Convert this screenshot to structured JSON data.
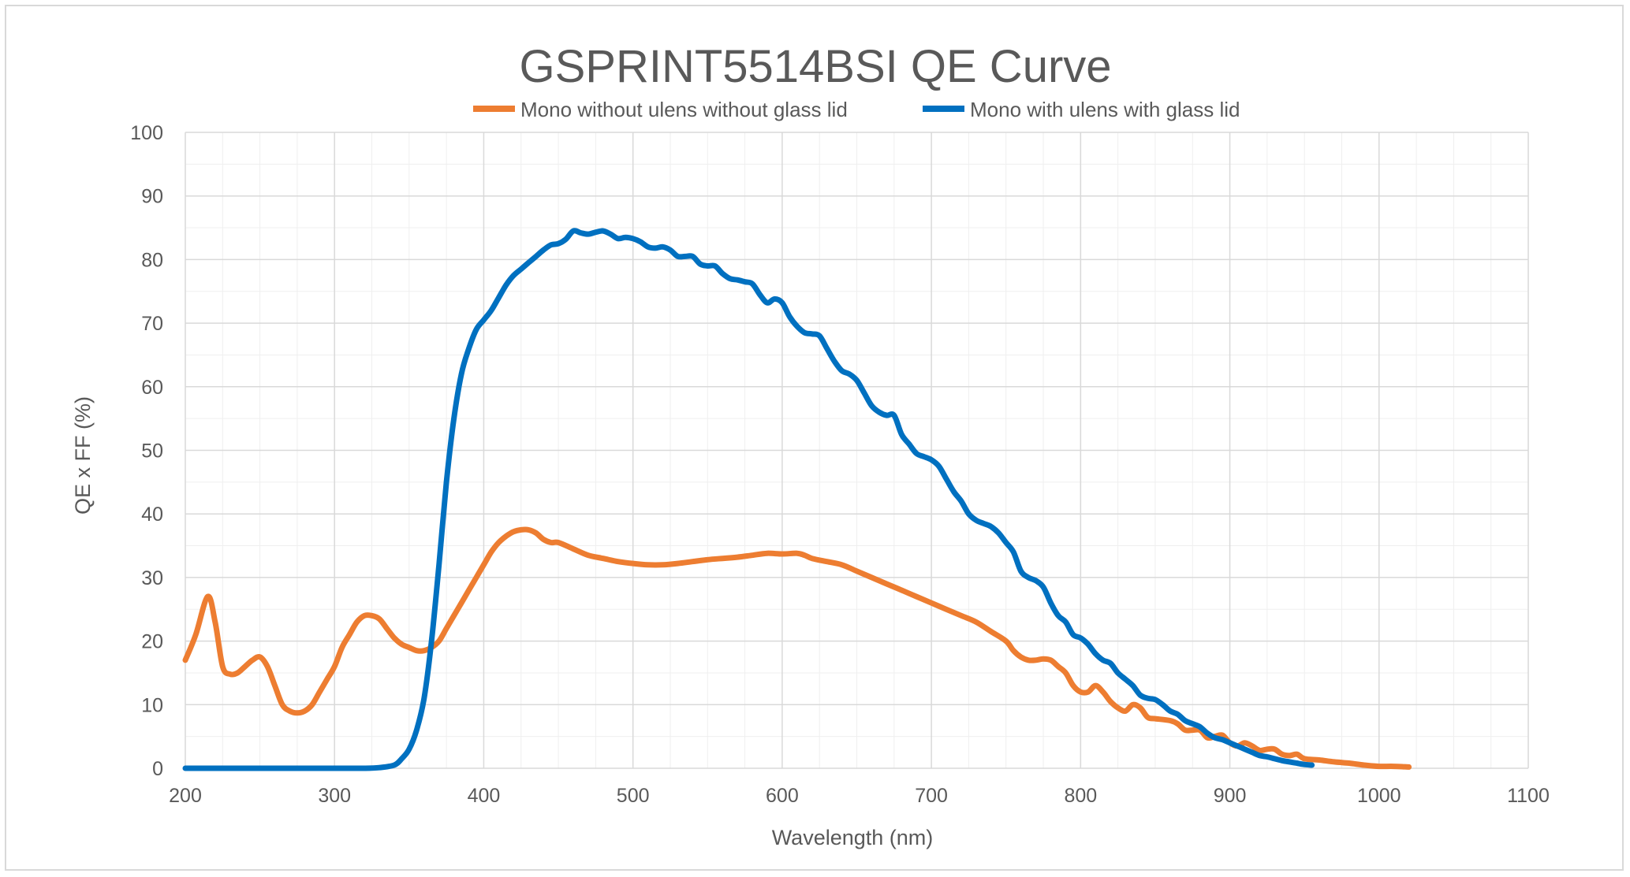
{
  "chart_data": {
    "type": "line",
    "title": "GSPRINT5514BSI QE Curve",
    "xlabel": "Wavelength (nm)",
    "ylabel": "QE x FF (%)",
    "xlim": [
      200,
      1100
    ],
    "ylim": [
      0,
      100
    ],
    "x_ticks": [
      "200",
      "300",
      "400",
      "500",
      "600",
      "700",
      "800",
      "900",
      "1000",
      "1100"
    ],
    "y_ticks": [
      "0",
      "10",
      "20",
      "30",
      "40",
      "50",
      "60",
      "70",
      "80",
      "90",
      "100"
    ],
    "grid": true,
    "legend_position": "top",
    "series": [
      {
        "name": "Mono without ulens without glass lid",
        "color": "#ED7D31",
        "points": [
          [
            200,
            17
          ],
          [
            207,
            21
          ],
          [
            215,
            27
          ],
          [
            220,
            23
          ],
          [
            225,
            16
          ],
          [
            230,
            14.8
          ],
          [
            235,
            15
          ],
          [
            240,
            16
          ],
          [
            245,
            17
          ],
          [
            250,
            17.5
          ],
          [
            255,
            16
          ],
          [
            260,
            13
          ],
          [
            265,
            10
          ],
          [
            270,
            9
          ],
          [
            275,
            8.7
          ],
          [
            280,
            9
          ],
          [
            285,
            10
          ],
          [
            290,
            12
          ],
          [
            295,
            14
          ],
          [
            300,
            16
          ],
          [
            305,
            19
          ],
          [
            310,
            21
          ],
          [
            315,
            23
          ],
          [
            320,
            24
          ],
          [
            325,
            24
          ],
          [
            330,
            23.5
          ],
          [
            335,
            22
          ],
          [
            340,
            20.5
          ],
          [
            345,
            19.5
          ],
          [
            350,
            19
          ],
          [
            355,
            18.5
          ],
          [
            360,
            18.5
          ],
          [
            365,
            19
          ],
          [
            370,
            20
          ],
          [
            375,
            22
          ],
          [
            380,
            24
          ],
          [
            385,
            26
          ],
          [
            390,
            28
          ],
          [
            395,
            30
          ],
          [
            400,
            32
          ],
          [
            405,
            34
          ],
          [
            410,
            35.5
          ],
          [
            415,
            36.5
          ],
          [
            420,
            37.2
          ],
          [
            425,
            37.5
          ],
          [
            430,
            37.5
          ],
          [
            435,
            37
          ],
          [
            440,
            36
          ],
          [
            445,
            35.5
          ],
          [
            450,
            35.5
          ],
          [
            460,
            34.5
          ],
          [
            470,
            33.5
          ],
          [
            480,
            33
          ],
          [
            490,
            32.5
          ],
          [
            500,
            32.2
          ],
          [
            510,
            32
          ],
          [
            520,
            32
          ],
          [
            530,
            32.2
          ],
          [
            540,
            32.5
          ],
          [
            550,
            32.8
          ],
          [
            560,
            33
          ],
          [
            570,
            33.2
          ],
          [
            580,
            33.5
          ],
          [
            590,
            33.8
          ],
          [
            600,
            33.7
          ],
          [
            610,
            33.8
          ],
          [
            615,
            33.5
          ],
          [
            620,
            33
          ],
          [
            630,
            32.5
          ],
          [
            640,
            32
          ],
          [
            650,
            31
          ],
          [
            660,
            30
          ],
          [
            670,
            29
          ],
          [
            680,
            28
          ],
          [
            690,
            27
          ],
          [
            700,
            26
          ],
          [
            710,
            25
          ],
          [
            720,
            24
          ],
          [
            730,
            23
          ],
          [
            740,
            21.5
          ],
          [
            750,
            20
          ],
          [
            755,
            18.5
          ],
          [
            760,
            17.5
          ],
          [
            765,
            17
          ],
          [
            770,
            17
          ],
          [
            775,
            17.2
          ],
          [
            780,
            17
          ],
          [
            785,
            16
          ],
          [
            790,
            15
          ],
          [
            795,
            13
          ],
          [
            800,
            12
          ],
          [
            805,
            12
          ],
          [
            810,
            13
          ],
          [
            815,
            12
          ],
          [
            820,
            10.5
          ],
          [
            825,
            9.5
          ],
          [
            830,
            9
          ],
          [
            835,
            10
          ],
          [
            840,
            9.5
          ],
          [
            845,
            8
          ],
          [
            850,
            7.8
          ],
          [
            860,
            7.5
          ],
          [
            865,
            7
          ],
          [
            870,
            6
          ],
          [
            875,
            6
          ],
          [
            880,
            6
          ],
          [
            885,
            4.8
          ],
          [
            890,
            5
          ],
          [
            895,
            5.2
          ],
          [
            900,
            4
          ],
          [
            905,
            3.5
          ],
          [
            910,
            4
          ],
          [
            915,
            3.5
          ],
          [
            920,
            2.8
          ],
          [
            925,
            3
          ],
          [
            930,
            3
          ],
          [
            935,
            2.2
          ],
          [
            940,
            2
          ],
          [
            945,
            2.2
          ],
          [
            950,
            1.5
          ],
          [
            960,
            1.3
          ],
          [
            970,
            1
          ],
          [
            980,
            0.8
          ],
          [
            990,
            0.5
          ],
          [
            1000,
            0.3
          ],
          [
            1010,
            0.3
          ],
          [
            1020,
            0.2
          ]
        ]
      },
      {
        "name": "Mono with ulens with glass lid",
        "color": "#0070C0",
        "points": [
          [
            200,
            0
          ],
          [
            300,
            0
          ],
          [
            320,
            0
          ],
          [
            330,
            0.1
          ],
          [
            340,
            0.5
          ],
          [
            345,
            1.5
          ],
          [
            350,
            3
          ],
          [
            355,
            6
          ],
          [
            360,
            11
          ],
          [
            365,
            20
          ],
          [
            370,
            32
          ],
          [
            375,
            45
          ],
          [
            380,
            55
          ],
          [
            385,
            62
          ],
          [
            390,
            66
          ],
          [
            395,
            69
          ],
          [
            400,
            70.5
          ],
          [
            405,
            72
          ],
          [
            410,
            74
          ],
          [
            415,
            76
          ],
          [
            420,
            77.5
          ],
          [
            425,
            78.5
          ],
          [
            430,
            79.5
          ],
          [
            435,
            80.5
          ],
          [
            440,
            81.5
          ],
          [
            445,
            82.3
          ],
          [
            450,
            82.5
          ],
          [
            455,
            83.2
          ],
          [
            460,
            84.5
          ],
          [
            465,
            84.2
          ],
          [
            470,
            84
          ],
          [
            475,
            84.3
          ],
          [
            480,
            84.5
          ],
          [
            485,
            84
          ],
          [
            490,
            83.3
          ],
          [
            495,
            83.5
          ],
          [
            500,
            83.3
          ],
          [
            505,
            82.8
          ],
          [
            510,
            82
          ],
          [
            515,
            81.8
          ],
          [
            520,
            82
          ],
          [
            525,
            81.5
          ],
          [
            530,
            80.5
          ],
          [
            535,
            80.5
          ],
          [
            540,
            80.5
          ],
          [
            545,
            79.3
          ],
          [
            550,
            79
          ],
          [
            555,
            79
          ],
          [
            560,
            77.8
          ],
          [
            565,
            77
          ],
          [
            570,
            76.8
          ],
          [
            575,
            76.5
          ],
          [
            580,
            76.2
          ],
          [
            585,
            74.5
          ],
          [
            590,
            73.2
          ],
          [
            595,
            73.8
          ],
          [
            600,
            73.2
          ],
          [
            605,
            71
          ],
          [
            610,
            69.5
          ],
          [
            615,
            68.5
          ],
          [
            620,
            68.3
          ],
          [
            625,
            68
          ],
          [
            630,
            66
          ],
          [
            635,
            64
          ],
          [
            640,
            62.5
          ],
          [
            645,
            62
          ],
          [
            650,
            61
          ],
          [
            655,
            59
          ],
          [
            660,
            57
          ],
          [
            665,
            56
          ],
          [
            670,
            55.5
          ],
          [
            675,
            55.5
          ],
          [
            680,
            52.5
          ],
          [
            685,
            51
          ],
          [
            690,
            49.5
          ],
          [
            695,
            49
          ],
          [
            700,
            48.5
          ],
          [
            705,
            47.5
          ],
          [
            710,
            45.5
          ],
          [
            715,
            43.5
          ],
          [
            720,
            42
          ],
          [
            725,
            40
          ],
          [
            730,
            39
          ],
          [
            735,
            38.5
          ],
          [
            740,
            38
          ],
          [
            745,
            37
          ],
          [
            750,
            35.5
          ],
          [
            755,
            34
          ],
          [
            760,
            31
          ],
          [
            765,
            30
          ],
          [
            770,
            29.5
          ],
          [
            775,
            28.5
          ],
          [
            780,
            26
          ],
          [
            785,
            24
          ],
          [
            790,
            23
          ],
          [
            795,
            21
          ],
          [
            800,
            20.5
          ],
          [
            805,
            19.5
          ],
          [
            810,
            18
          ],
          [
            815,
            17
          ],
          [
            820,
            16.5
          ],
          [
            825,
            15
          ],
          [
            830,
            14
          ],
          [
            835,
            13
          ],
          [
            840,
            11.5
          ],
          [
            845,
            11
          ],
          [
            850,
            10.8
          ],
          [
            855,
            10
          ],
          [
            860,
            9
          ],
          [
            865,
            8.5
          ],
          [
            870,
            7.5
          ],
          [
            875,
            7
          ],
          [
            880,
            6.5
          ],
          [
            885,
            5.5
          ],
          [
            890,
            4.8
          ],
          [
            895,
            4.5
          ],
          [
            900,
            4
          ],
          [
            905,
            3.5
          ],
          [
            910,
            3
          ],
          [
            915,
            2.5
          ],
          [
            920,
            2
          ],
          [
            925,
            1.8
          ],
          [
            930,
            1.5
          ],
          [
            935,
            1.2
          ],
          [
            940,
            1
          ],
          [
            945,
            0.8
          ],
          [
            950,
            0.6
          ],
          [
            955,
            0.5
          ]
        ]
      }
    ]
  }
}
